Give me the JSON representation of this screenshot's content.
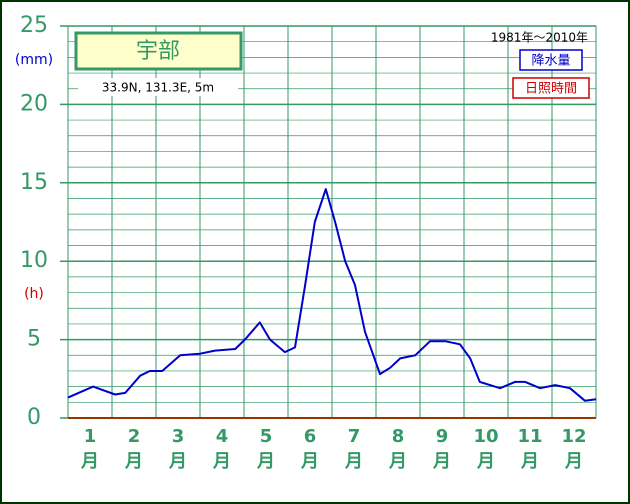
{
  "chart_data": {
    "type": "line",
    "title": "宇部",
    "subtitle": "33.9N,  131.3E,  5m",
    "period": "1981年〜2010年",
    "y_unit": "(mm)",
    "y2_unit": "(h)",
    "categories": [
      "1",
      "2",
      "3",
      "4",
      "5",
      "6",
      "7",
      "8",
      "9",
      "10",
      "11",
      "12"
    ],
    "x_unit": "月",
    "xlim": [
      0,
      12
    ],
    "ylim": [
      0,
      25
    ],
    "yticks": [
      0,
      5,
      10,
      15,
      20,
      25
    ],
    "minor_yticks": [
      1,
      2,
      3,
      4,
      6,
      7,
      8,
      9,
      11,
      12,
      13,
      14,
      16,
      17,
      18,
      19,
      21,
      22,
      23,
      24
    ],
    "grid": true,
    "legend": [
      {
        "name": "降水量",
        "color": "#0000cc"
      },
      {
        "name": "日照時間",
        "color": "#cc0000"
      }
    ],
    "series": [
      {
        "name": "降水量",
        "color": "#0000cc",
        "x": [
          0,
          0.57,
          1.07,
          1.3,
          1.64,
          1.86,
          2.14,
          2.55,
          3.0,
          3.34,
          3.8,
          4.02,
          4.36,
          4.59,
          4.93,
          5.16,
          5.39,
          5.61,
          5.86,
          6.07,
          6.3,
          6.52,
          6.75,
          7.09,
          7.32,
          7.55,
          7.89,
          8.23,
          8.57,
          8.91,
          9.14,
          9.36,
          9.82,
          10.16,
          10.39,
          10.73,
          11.07,
          11.41,
          11.75,
          12.0
        ],
        "values": [
          1.3,
          2.0,
          1.5,
          1.6,
          2.7,
          3.0,
          3.0,
          4.0,
          4.1,
          4.3,
          4.4,
          5.0,
          6.1,
          5.0,
          4.2,
          4.5,
          8.5,
          12.5,
          14.6,
          12.5,
          10.0,
          8.5,
          5.5,
          2.8,
          3.2,
          3.8,
          4.0,
          4.9,
          4.9,
          4.7,
          3.8,
          2.3,
          1.9,
          2.3,
          2.3,
          1.9,
          2.1,
          1.9,
          1.1,
          1.2
        ]
      }
    ]
  }
}
